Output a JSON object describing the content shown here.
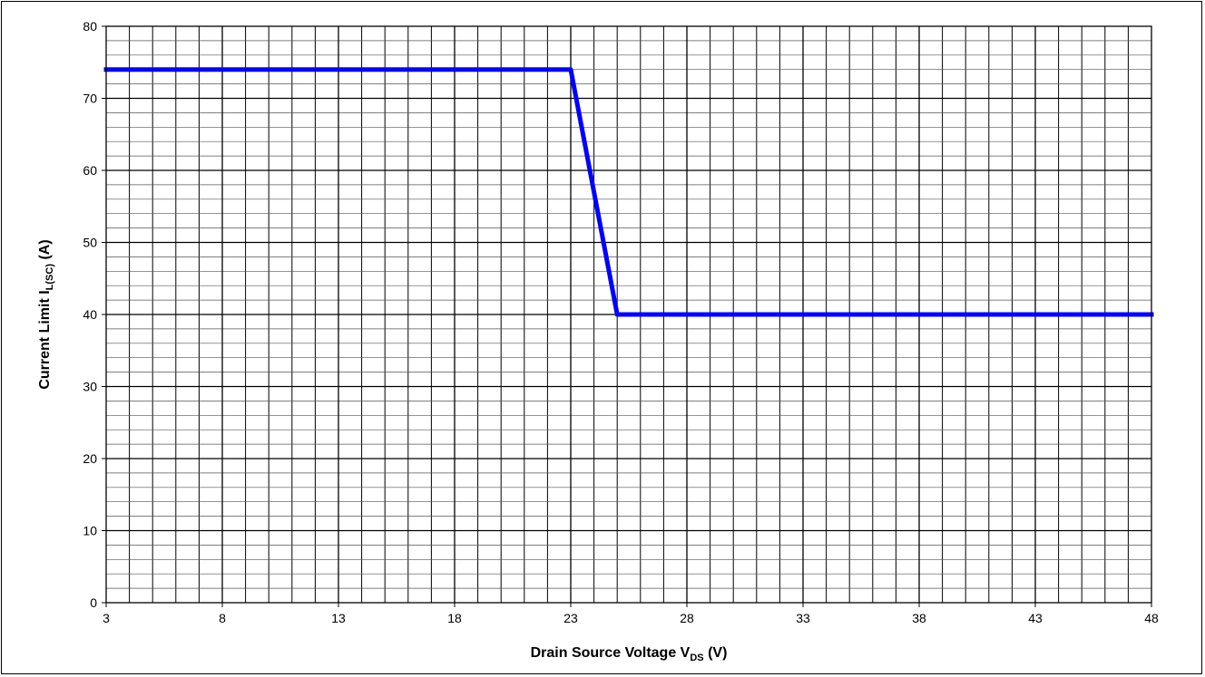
{
  "chart_data": {
    "type": "line",
    "title": "",
    "xlabel": {
      "main": "Drain Source Voltage V",
      "sub": "DS",
      "suffix": " (V)"
    },
    "ylabel": {
      "main": "Current Limit I",
      "sub": "L(SC)",
      "suffix": " (A)"
    },
    "xlim": [
      3,
      48
    ],
    "ylim": [
      0,
      80
    ],
    "x_ticks": [
      3,
      8,
      13,
      18,
      23,
      28,
      33,
      38,
      43,
      48
    ],
    "y_ticks": [
      0,
      10,
      20,
      30,
      40,
      50,
      60,
      70,
      80
    ],
    "x_minor_step": 1,
    "y_minor_step": 2,
    "grid": true,
    "series": [
      {
        "color": "#0000ff",
        "x": [
          3,
          23,
          25,
          48
        ],
        "y": [
          74,
          74,
          40,
          40
        ]
      }
    ]
  }
}
